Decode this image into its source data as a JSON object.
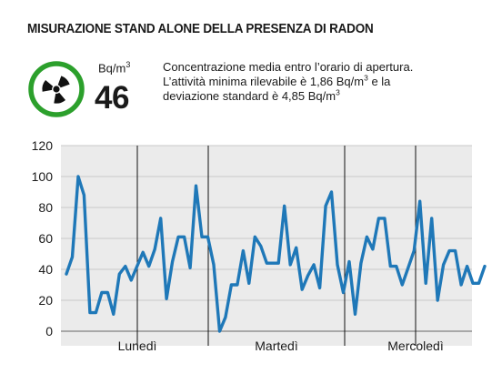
{
  "header": {
    "title": "MISURAZIONE STAND ALONE DELLA PRESENZA DI RADON",
    "unit_base": "Bq/m",
    "unit_exp": "3",
    "value": "46",
    "desc_part1": "Concentrazione media entro l’orario di apertura. L’attività minima rilevabile è 1,86 Bq/m",
    "desc_exp1": "3",
    "desc_part2": " e la deviazione standard è 4,85 Bq/m",
    "desc_exp2": "3"
  },
  "icons": {
    "badge": "radiation-icon"
  },
  "colors": {
    "line": "#1f78b8",
    "badge_ring": "#2ca02c",
    "badge_symbol": "#111111",
    "panel_bg": "#ebebeb",
    "gridline": "#c8c8c8",
    "day_divider": "#111111"
  },
  "chart_data": {
    "type": "line",
    "ylim": [
      0,
      120
    ],
    "yticks": [
      "0",
      "20",
      "40",
      "60",
      "80",
      "100",
      "120"
    ],
    "day_labels": [
      "Lunedì",
      "Martedì",
      "Mercoledì"
    ],
    "y": [
      37,
      48,
      100,
      88,
      12,
      12,
      25,
      25,
      11,
      37,
      42,
      33,
      42,
      51,
      42,
      53,
      73,
      21,
      45,
      61,
      61,
      41,
      94,
      61,
      61,
      43,
      0,
      9,
      30,
      30,
      52,
      31,
      61,
      55,
      44,
      44,
      44,
      81,
      43,
      54,
      27,
      36,
      43,
      28,
      81,
      90,
      43,
      25,
      45,
      11,
      44,
      61,
      53,
      73,
      73,
      42,
      42,
      30,
      41,
      52,
      84,
      31,
      73,
      20,
      43,
      52,
      52,
      30,
      42,
      31,
      31,
      42
    ]
  }
}
